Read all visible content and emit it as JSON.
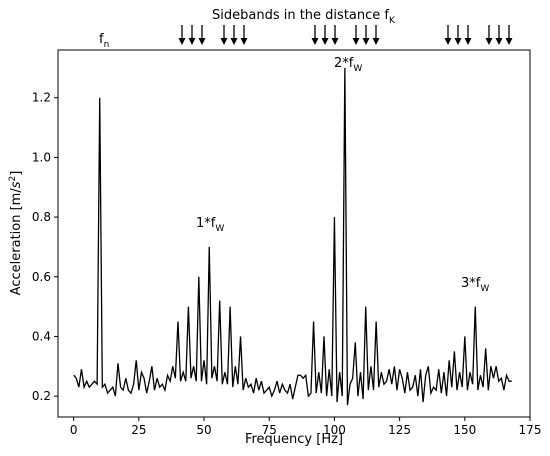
{
  "chart_data": {
    "type": "line",
    "xlabel_main": "Frequency ",
    "xlabel_unit": "[Hz]",
    "ylabel_main": "Acceleration [m/",
    "ylabel_s": "s",
    "ylabel_exp": "2",
    "ylabel_close": "]",
    "xlim": [
      -6,
      175
    ],
    "ylim": [
      0.13,
      1.36
    ],
    "xticks": [
      0,
      25,
      50,
      75,
      100,
      125,
      150,
      175
    ],
    "yticks": [
      0.2,
      0.4,
      0.6,
      0.8,
      1.0,
      1.2
    ],
    "ytick_labels": [
      "0.2",
      "0.4",
      "0.6",
      "0.8",
      "1.0",
      "1.2"
    ],
    "grid": false,
    "series": [
      {
        "line_color": "#000000",
        "points": [
          [
            0,
            0.27
          ],
          [
            1,
            0.26
          ],
          [
            2,
            0.23
          ],
          [
            3,
            0.29
          ],
          [
            4,
            0.23
          ],
          [
            5,
            0.25
          ],
          [
            6,
            0.23
          ],
          [
            7,
            0.24
          ],
          [
            8,
            0.25
          ],
          [
            9,
            0.24
          ],
          [
            10,
            1.2
          ],
          [
            11,
            0.23
          ],
          [
            12,
            0.24
          ],
          [
            13,
            0.21
          ],
          [
            14,
            0.22
          ],
          [
            15,
            0.23
          ],
          [
            16,
            0.2
          ],
          [
            17,
            0.31
          ],
          [
            18,
            0.23
          ],
          [
            19,
            0.22
          ],
          [
            20,
            0.26
          ],
          [
            21,
            0.22
          ],
          [
            22,
            0.21
          ],
          [
            23,
            0.24
          ],
          [
            24,
            0.32
          ],
          [
            25,
            0.22
          ],
          [
            26,
            0.28
          ],
          [
            27,
            0.26
          ],
          [
            28,
            0.21
          ],
          [
            29,
            0.25
          ],
          [
            30,
            0.3
          ],
          [
            31,
            0.22
          ],
          [
            32,
            0.26
          ],
          [
            33,
            0.23
          ],
          [
            34,
            0.24
          ],
          [
            35,
            0.22
          ],
          [
            36,
            0.27
          ],
          [
            37,
            0.25
          ],
          [
            38,
            0.3
          ],
          [
            39,
            0.26
          ],
          [
            40,
            0.45
          ],
          [
            41,
            0.25
          ],
          [
            42,
            0.28
          ],
          [
            43,
            0.25
          ],
          [
            44,
            0.5
          ],
          [
            45,
            0.26
          ],
          [
            46,
            0.3
          ],
          [
            47,
            0.25
          ],
          [
            48,
            0.6
          ],
          [
            49,
            0.25
          ],
          [
            50,
            0.32
          ],
          [
            51,
            0.24
          ],
          [
            52,
            0.7
          ],
          [
            53,
            0.26
          ],
          [
            54,
            0.3
          ],
          [
            55,
            0.25
          ],
          [
            56,
            0.52
          ],
          [
            57,
            0.24
          ],
          [
            58,
            0.28
          ],
          [
            59,
            0.24
          ],
          [
            60,
            0.5
          ],
          [
            61,
            0.23
          ],
          [
            62,
            0.3
          ],
          [
            63,
            0.24
          ],
          [
            64,
            0.4
          ],
          [
            65,
            0.22
          ],
          [
            66,
            0.26
          ],
          [
            67,
            0.23
          ],
          [
            68,
            0.24
          ],
          [
            69,
            0.21
          ],
          [
            70,
            0.26
          ],
          [
            71,
            0.22
          ],
          [
            72,
            0.25
          ],
          [
            73,
            0.21
          ],
          [
            74,
            0.22
          ],
          [
            75,
            0.23
          ],
          [
            76,
            0.2
          ],
          [
            77,
            0.22
          ],
          [
            78,
            0.25
          ],
          [
            79,
            0.21
          ],
          [
            80,
            0.24
          ],
          [
            81,
            0.22
          ],
          [
            82,
            0.21
          ],
          [
            83,
            0.24
          ],
          [
            84,
            0.19
          ],
          [
            85,
            0.23
          ],
          [
            86,
            0.27
          ],
          [
            87,
            0.27
          ],
          [
            88,
            0.26
          ],
          [
            89,
            0.27
          ],
          [
            90,
            0.2
          ],
          [
            91,
            0.21
          ],
          [
            92,
            0.45
          ],
          [
            93,
            0.21
          ],
          [
            94,
            0.28
          ],
          [
            95,
            0.21
          ],
          [
            96,
            0.4
          ],
          [
            97,
            0.2
          ],
          [
            98,
            0.29
          ],
          [
            99,
            0.2
          ],
          [
            100,
            0.8
          ],
          [
            101,
            0.18
          ],
          [
            102,
            0.28
          ],
          [
            103,
            0.2
          ],
          [
            104,
            1.3
          ],
          [
            105,
            0.17
          ],
          [
            106,
            0.24
          ],
          [
            107,
            0.26
          ],
          [
            108,
            0.38
          ],
          [
            109,
            0.2
          ],
          [
            110,
            0.28
          ],
          [
            111,
            0.19
          ],
          [
            112,
            0.5
          ],
          [
            113,
            0.22
          ],
          [
            114,
            0.3
          ],
          [
            115,
            0.22
          ],
          [
            116,
            0.45
          ],
          [
            117,
            0.23
          ],
          [
            118,
            0.28
          ],
          [
            119,
            0.24
          ],
          [
            120,
            0.25
          ],
          [
            121,
            0.29
          ],
          [
            122,
            0.24
          ],
          [
            123,
            0.3
          ],
          [
            124,
            0.22
          ],
          [
            125,
            0.29
          ],
          [
            126,
            0.26
          ],
          [
            127,
            0.21
          ],
          [
            128,
            0.28
          ],
          [
            129,
            0.22
          ],
          [
            130,
            0.23
          ],
          [
            131,
            0.27
          ],
          [
            132,
            0.2
          ],
          [
            133,
            0.29
          ],
          [
            134,
            0.18
          ],
          [
            135,
            0.27
          ],
          [
            136,
            0.3
          ],
          [
            137,
            0.21
          ],
          [
            138,
            0.23
          ],
          [
            139,
            0.22
          ],
          [
            140,
            0.29
          ],
          [
            141,
            0.21
          ],
          [
            142,
            0.28
          ],
          [
            143,
            0.2
          ],
          [
            144,
            0.32
          ],
          [
            145,
            0.23
          ],
          [
            146,
            0.35
          ],
          [
            147,
            0.22
          ],
          [
            148,
            0.28
          ],
          [
            149,
            0.23
          ],
          [
            150,
            0.4
          ],
          [
            151,
            0.22
          ],
          [
            152,
            0.28
          ],
          [
            153,
            0.24
          ],
          [
            154,
            0.5
          ],
          [
            155,
            0.22
          ],
          [
            156,
            0.27
          ],
          [
            157,
            0.23
          ],
          [
            158,
            0.36
          ],
          [
            159,
            0.22
          ],
          [
            160,
            0.3
          ],
          [
            161,
            0.26
          ],
          [
            162,
            0.3
          ],
          [
            163,
            0.25
          ],
          [
            164,
            0.26
          ],
          [
            165,
            0.22
          ],
          [
            166,
            0.27
          ],
          [
            167,
            0.25
          ],
          [
            168,
            0.25
          ]
        ]
      }
    ]
  },
  "annotations": {
    "sidebands_prefix": "Sidebands in the distance f",
    "sidebands_sub": "K",
    "fn_main": "f",
    "fn_sub": "n",
    "h1_main": "1*f",
    "h1_sub": "W",
    "h2_main": "2*f",
    "h2_sub": "W",
    "h3_main": "3*f",
    "h3_sub": "W"
  }
}
